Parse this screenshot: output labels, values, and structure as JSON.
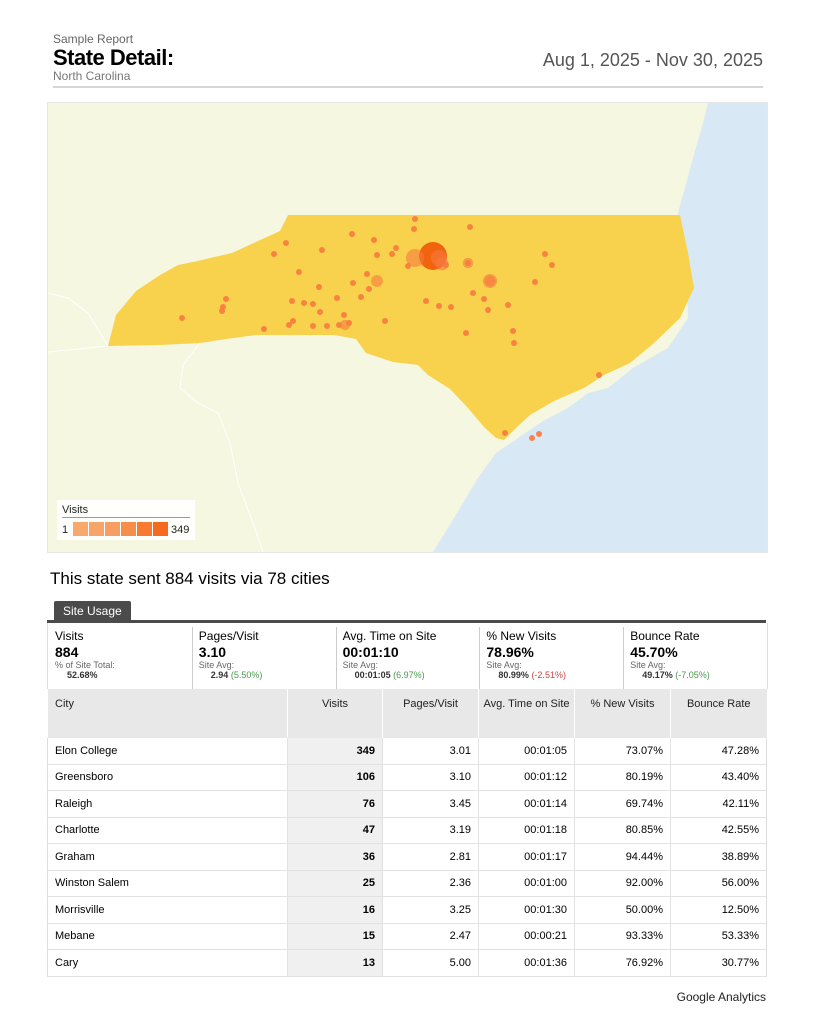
{
  "header": {
    "subtitle": "Sample Report",
    "title": "State Detail:",
    "state": "North Carolina",
    "date_range": "Aug 1, 2025 - Nov 30, 2025"
  },
  "map": {
    "legend_title": "Visits",
    "legend_min": "1",
    "legend_max": "349",
    "legend_colors": [
      "#f9a86b",
      "#f8a368",
      "#f79e64",
      "#f78d4b",
      "#f77a30",
      "#f56a1e"
    ],
    "colors": {
      "water": "#d8e8f5",
      "land": "#f5f7e0",
      "state": "#f8d24d",
      "dot": "#f77a40",
      "dot_big": "#f05d0a"
    },
    "visits_markers": [
      349,
      106,
      76,
      47,
      36,
      25,
      16,
      15,
      13,
      1
    ]
  },
  "summary": "This state sent 884 visits via 78 cities",
  "tab_label": "Site Usage",
  "metrics": [
    {
      "label": "Visits",
      "value": "884",
      "sub_label": "% of Site Total:",
      "sub_value": "52.68%",
      "delta": "",
      "delta_class": ""
    },
    {
      "label": "Pages/Visit",
      "value": "3.10",
      "sub_label": "Site Avg:",
      "sub_value": "2.94",
      "delta": "(5.50%)",
      "delta_class": "pos"
    },
    {
      "label": "Avg. Time on Site",
      "value": "00:01:10",
      "sub_label": "Site Avg:",
      "sub_value": "00:01:05",
      "delta": "(6.97%)",
      "delta_class": "pos"
    },
    {
      "label": "% New Visits",
      "value": "78.96%",
      "sub_label": "Site Avg:",
      "sub_value": "80.99%",
      "delta": "(-2.51%)",
      "delta_class": "neg"
    },
    {
      "label": "Bounce Rate",
      "value": "45.70%",
      "sub_label": "Site Avg:",
      "sub_value": "49.17%",
      "delta": "(-7.05%)",
      "delta_class": "pos"
    }
  ],
  "table": {
    "headers": {
      "city": "City",
      "visits": "Visits",
      "pages": "Pages/Visit",
      "time": "Avg. Time on Site",
      "new": "% New Visits",
      "bounce": "Bounce Rate"
    },
    "rows": [
      {
        "city": "Elon College",
        "visits": "349",
        "pages": "3.01",
        "time": "00:01:05",
        "new": "73.07%",
        "bounce": "47.28%"
      },
      {
        "city": "Greensboro",
        "visits": "106",
        "pages": "3.10",
        "time": "00:01:12",
        "new": "80.19%",
        "bounce": "43.40%"
      },
      {
        "city": "Raleigh",
        "visits": "76",
        "pages": "3.45",
        "time": "00:01:14",
        "new": "69.74%",
        "bounce": "42.11%"
      },
      {
        "city": "Charlotte",
        "visits": "47",
        "pages": "3.19",
        "time": "00:01:18",
        "new": "80.85%",
        "bounce": "42.55%"
      },
      {
        "city": "Graham",
        "visits": "36",
        "pages": "2.81",
        "time": "00:01:17",
        "new": "94.44%",
        "bounce": "38.89%"
      },
      {
        "city": "Winston Salem",
        "visits": "25",
        "pages": "2.36",
        "time": "00:01:00",
        "new": "92.00%",
        "bounce": "56.00%"
      },
      {
        "city": "Morrisville",
        "visits": "16",
        "pages": "3.25",
        "time": "00:01:30",
        "new": "50.00%",
        "bounce": "12.50%"
      },
      {
        "city": "Mebane",
        "visits": "15",
        "pages": "2.47",
        "time": "00:00:21",
        "new": "93.33%",
        "bounce": "53.33%"
      },
      {
        "city": "Cary",
        "visits": "13",
        "pages": "5.00",
        "time": "00:01:36",
        "new": "76.92%",
        "bounce": "30.77%"
      }
    ]
  },
  "footer": "Google Analytics"
}
